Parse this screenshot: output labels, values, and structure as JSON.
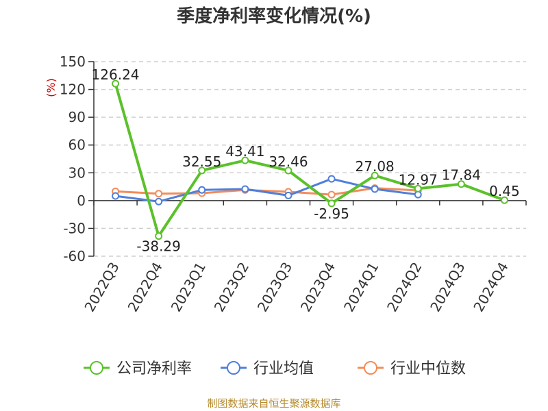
{
  "source_text": "制图数据来自恒生聚源数据库",
  "chart_data": {
    "type": "line",
    "title": "季度净利率变化情况(%)",
    "ylabel": "(%)",
    "xlabel": "",
    "ylim": [
      -60,
      150
    ],
    "yticks": [
      150,
      120,
      90,
      60,
      30,
      0,
      -30,
      -60
    ],
    "grid": true,
    "legend_position": "bottom",
    "categories": [
      "2022Q3",
      "2022Q4",
      "2023Q1",
      "2023Q2",
      "2023Q3",
      "2023Q4",
      "2024Q1",
      "2024Q2",
      "2024Q3",
      "2024Q4"
    ],
    "series": [
      {
        "name": "公司净利率",
        "color": "#5bc12b",
        "values": [
          126.24,
          -38.29,
          32.55,
          43.41,
          32.46,
          -2.95,
          27.08,
          12.97,
          17.84,
          0.45
        ],
        "labels": [
          "126.24",
          "-38.29",
          "32.55",
          "43.41",
          "32.46",
          "-2.95",
          "27.08",
          "12.97",
          "17.84",
          "0.45"
        ]
      },
      {
        "name": "行业均值",
        "color": "#4f7fdb",
        "values": [
          5.0,
          -1.0,
          11.5,
          12.5,
          5.5,
          23.5,
          12.5,
          6.5,
          null,
          null
        ]
      },
      {
        "name": "行业中位数",
        "color": "#f28c5a",
        "values": [
          10.0,
          7.5,
          8.0,
          11.5,
          9.5,
          6.5,
          13.5,
          11.0,
          null,
          null
        ]
      }
    ]
  }
}
